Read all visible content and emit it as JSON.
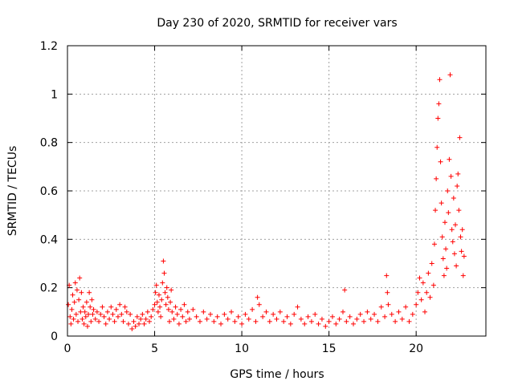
{
  "chart_data": {
    "type": "scatter",
    "title": "Day 230 of 2020, SRMTID for receiver vars",
    "xlabel": "GPS time / hours",
    "ylabel": "SRMTID / TECUs",
    "xlim": [
      0,
      24
    ],
    "ylim": [
      0,
      1.2
    ],
    "xticks": [
      0,
      5,
      10,
      15,
      20
    ],
    "yticks": [
      0,
      0.2,
      0.4,
      0.6,
      0.8,
      1,
      1.2
    ],
    "xtick_labels": [
      "0",
      "5",
      "10",
      "15",
      "20"
    ],
    "ytick_labels": [
      "0",
      "0.2",
      "0.4",
      "0.6",
      "0.8",
      "1",
      "1.2"
    ],
    "grid": true,
    "marker": "+",
    "series": [
      {
        "name": "SRMTID",
        "color": "#ff0000",
        "points": [
          [
            0.05,
            0.13
          ],
          [
            0.1,
            0.21
          ],
          [
            0.15,
            0.08
          ],
          [
            0.2,
            0.05
          ],
          [
            0.25,
            0.11
          ],
          [
            0.3,
            0.17
          ],
          [
            0.35,
            0.07
          ],
          [
            0.4,
            0.14
          ],
          [
            0.45,
            0.22
          ],
          [
            0.5,
            0.09
          ],
          [
            0.55,
            0.19
          ],
          [
            0.6,
            0.06
          ],
          [
            0.65,
            0.15
          ],
          [
            0.7,
            0.24
          ],
          [
            0.75,
            0.1
          ],
          [
            0.8,
            0.18
          ],
          [
            0.85,
            0.07
          ],
          [
            0.9,
            0.12
          ],
          [
            0.95,
            0.05
          ],
          [
            1.0,
            0.1
          ],
          [
            1.05,
            0.08
          ],
          [
            1.1,
            0.14
          ],
          [
            1.15,
            0.04
          ],
          [
            1.2,
            0.09
          ],
          [
            1.25,
            0.18
          ],
          [
            1.3,
            0.12
          ],
          [
            1.35,
            0.06
          ],
          [
            1.4,
            0.15
          ],
          [
            1.45,
            0.09
          ],
          [
            1.5,
            0.11
          ],
          [
            1.6,
            0.07
          ],
          [
            1.7,
            0.1
          ],
          [
            1.8,
            0.06
          ],
          [
            1.9,
            0.09
          ],
          [
            2.0,
            0.12
          ],
          [
            2.1,
            0.08
          ],
          [
            2.2,
            0.05
          ],
          [
            2.3,
            0.1
          ],
          [
            2.4,
            0.07
          ],
          [
            2.5,
            0.12
          ],
          [
            2.6,
            0.09
          ],
          [
            2.7,
            0.06
          ],
          [
            2.8,
            0.11
          ],
          [
            2.9,
            0.08
          ],
          [
            3.0,
            0.13
          ],
          [
            3.1,
            0.09
          ],
          [
            3.2,
            0.06
          ],
          [
            3.3,
            0.12
          ],
          [
            3.4,
            0.1
          ],
          [
            3.5,
            0.05
          ],
          [
            3.6,
            0.09
          ],
          [
            3.7,
            0.03
          ],
          [
            3.8,
            0.06
          ],
          [
            3.9,
            0.04
          ],
          [
            4.0,
            0.08
          ],
          [
            4.1,
            0.05
          ],
          [
            4.2,
            0.07
          ],
          [
            4.3,
            0.09
          ],
          [
            4.4,
            0.05
          ],
          [
            4.5,
            0.07
          ],
          [
            4.6,
            0.1
          ],
          [
            4.7,
            0.06
          ],
          [
            4.8,
            0.08
          ],
          [
            4.9,
            0.11
          ],
          [
            5.0,
            0.13
          ],
          [
            5.05,
            0.18
          ],
          [
            5.1,
            0.21
          ],
          [
            5.15,
            0.14
          ],
          [
            5.2,
            0.1
          ],
          [
            5.25,
            0.17
          ],
          [
            5.3,
            0.12
          ],
          [
            5.35,
            0.08
          ],
          [
            5.4,
            0.15
          ],
          [
            5.45,
            0.22
          ],
          [
            5.5,
            0.31
          ],
          [
            5.55,
            0.26
          ],
          [
            5.6,
            0.18
          ],
          [
            5.65,
            0.13
          ],
          [
            5.7,
            0.2
          ],
          [
            5.75,
            0.16
          ],
          [
            5.8,
            0.11
          ],
          [
            5.85,
            0.06
          ],
          [
            5.9,
            0.14
          ],
          [
            5.95,
            0.19
          ],
          [
            6.0,
            0.1
          ],
          [
            6.1,
            0.07
          ],
          [
            6.2,
            0.12
          ],
          [
            6.3,
            0.09
          ],
          [
            6.4,
            0.05
          ],
          [
            6.5,
            0.11
          ],
          [
            6.6,
            0.08
          ],
          [
            6.7,
            0.13
          ],
          [
            6.8,
            0.06
          ],
          [
            6.9,
            0.1
          ],
          [
            7.0,
            0.07
          ],
          [
            7.2,
            0.11
          ],
          [
            7.4,
            0.08
          ],
          [
            7.6,
            0.06
          ],
          [
            7.8,
            0.1
          ],
          [
            8.0,
            0.07
          ],
          [
            8.2,
            0.09
          ],
          [
            8.4,
            0.06
          ],
          [
            8.6,
            0.08
          ],
          [
            8.8,
            0.05
          ],
          [
            9.0,
            0.09
          ],
          [
            9.2,
            0.07
          ],
          [
            9.4,
            0.1
          ],
          [
            9.6,
            0.06
          ],
          [
            9.8,
            0.08
          ],
          [
            10.0,
            0.05
          ],
          [
            10.2,
            0.09
          ],
          [
            10.4,
            0.07
          ],
          [
            10.6,
            0.11
          ],
          [
            10.8,
            0.06
          ],
          [
            10.9,
            0.16
          ],
          [
            11.0,
            0.13
          ],
          [
            11.2,
            0.08
          ],
          [
            11.4,
            0.1
          ],
          [
            11.6,
            0.06
          ],
          [
            11.8,
            0.09
          ],
          [
            12.0,
            0.07
          ],
          [
            12.2,
            0.1
          ],
          [
            12.4,
            0.06
          ],
          [
            12.6,
            0.08
          ],
          [
            12.8,
            0.05
          ],
          [
            13.0,
            0.09
          ],
          [
            13.2,
            0.12
          ],
          [
            13.4,
            0.07
          ],
          [
            13.6,
            0.05
          ],
          [
            13.8,
            0.08
          ],
          [
            14.0,
            0.06
          ],
          [
            14.2,
            0.09
          ],
          [
            14.4,
            0.05
          ],
          [
            14.6,
            0.07
          ],
          [
            14.8,
            0.04
          ],
          [
            15.0,
            0.06
          ],
          [
            15.2,
            0.08
          ],
          [
            15.4,
            0.05
          ],
          [
            15.6,
            0.07
          ],
          [
            15.8,
            0.1
          ],
          [
            15.9,
            0.19
          ],
          [
            16.0,
            0.06
          ],
          [
            16.2,
            0.08
          ],
          [
            16.4,
            0.05
          ],
          [
            16.6,
            0.07
          ],
          [
            16.8,
            0.09
          ],
          [
            17.0,
            0.06
          ],
          [
            17.2,
            0.1
          ],
          [
            17.4,
            0.07
          ],
          [
            17.6,
            0.09
          ],
          [
            17.8,
            0.06
          ],
          [
            18.0,
            0.12
          ],
          [
            18.2,
            0.08
          ],
          [
            18.3,
            0.25
          ],
          [
            18.35,
            0.18
          ],
          [
            18.4,
            0.13
          ],
          [
            18.6,
            0.09
          ],
          [
            18.8,
            0.06
          ],
          [
            19.0,
            0.1
          ],
          [
            19.2,
            0.07
          ],
          [
            19.4,
            0.12
          ],
          [
            19.6,
            0.06
          ],
          [
            19.8,
            0.09
          ],
          [
            20.0,
            0.13
          ],
          [
            20.1,
            0.18
          ],
          [
            20.2,
            0.24
          ],
          [
            20.3,
            0.15
          ],
          [
            20.4,
            0.22
          ],
          [
            20.5,
            0.1
          ],
          [
            20.6,
            0.18
          ],
          [
            20.7,
            0.26
          ],
          [
            20.8,
            0.16
          ],
          [
            20.9,
            0.3
          ],
          [
            21.0,
            0.21
          ],
          [
            21.05,
            0.38
          ],
          [
            21.1,
            0.52
          ],
          [
            21.15,
            0.65
          ],
          [
            21.2,
            0.78
          ],
          [
            21.25,
            0.9
          ],
          [
            21.3,
            0.96
          ],
          [
            21.35,
            1.06
          ],
          [
            21.4,
            0.72
          ],
          [
            21.45,
            0.55
          ],
          [
            21.5,
            0.41
          ],
          [
            21.55,
            0.32
          ],
          [
            21.6,
            0.25
          ],
          [
            21.65,
            0.47
          ],
          [
            21.7,
            0.36
          ],
          [
            21.75,
            0.28
          ],
          [
            21.8,
            0.6
          ],
          [
            21.85,
            0.51
          ],
          [
            21.9,
            0.73
          ],
          [
            21.95,
            1.08
          ],
          [
            22.0,
            0.66
          ],
          [
            22.05,
            0.44
          ],
          [
            22.1,
            0.39
          ],
          [
            22.15,
            0.57
          ],
          [
            22.2,
            0.34
          ],
          [
            22.25,
            0.46
          ],
          [
            22.3,
            0.29
          ],
          [
            22.35,
            0.62
          ],
          [
            22.4,
            0.67
          ],
          [
            22.45,
            0.52
          ],
          [
            22.5,
            0.82
          ],
          [
            22.55,
            0.41
          ],
          [
            22.6,
            0.35
          ],
          [
            22.65,
            0.44
          ],
          [
            22.7,
            0.25
          ],
          [
            22.75,
            0.33
          ]
        ]
      }
    ]
  }
}
